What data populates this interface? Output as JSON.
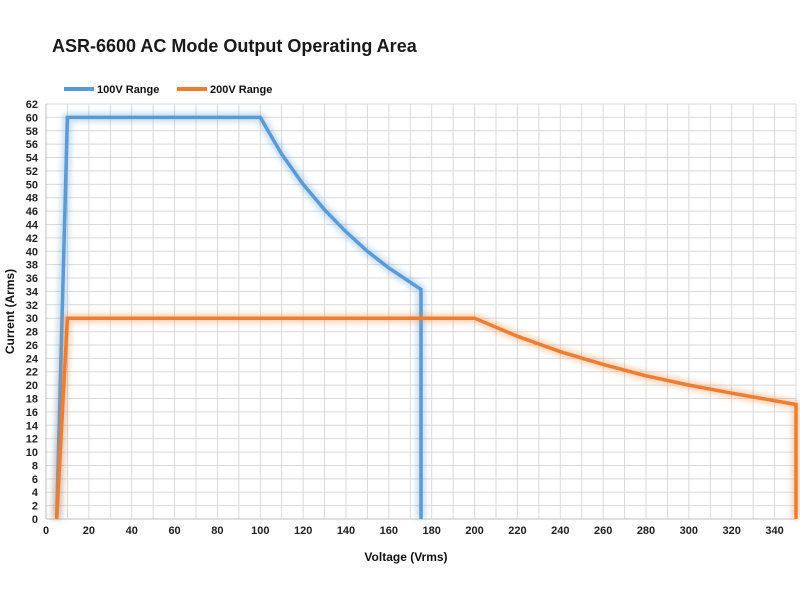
{
  "chart_data": {
    "type": "line",
    "title": "ASR-6600 AC Mode Output Operating Area",
    "xlabel": "Voltage (Vrms)",
    "ylabel": "Current (Arms)",
    "xlim": [
      0,
      350
    ],
    "ylim": [
      0,
      62
    ],
    "x_ticks": [
      0,
      20,
      40,
      60,
      80,
      100,
      120,
      140,
      160,
      180,
      200,
      220,
      240,
      260,
      280,
      300,
      320,
      340
    ],
    "y_ticks": [
      0,
      2,
      4,
      6,
      8,
      10,
      12,
      14,
      16,
      18,
      20,
      22,
      24,
      26,
      28,
      30,
      32,
      34,
      36,
      38,
      40,
      42,
      44,
      46,
      48,
      50,
      52,
      54,
      56,
      58,
      60,
      62
    ],
    "grid": true,
    "legend_position": "top-left",
    "series": [
      {
        "name": "100V Range",
        "color": "#5b9bd5",
        "points": [
          [
            5,
            0
          ],
          [
            10,
            60
          ],
          [
            100,
            60
          ],
          [
            110,
            54.5
          ],
          [
            120,
            50
          ],
          [
            130,
            46.2
          ],
          [
            140,
            42.9
          ],
          [
            150,
            40
          ],
          [
            160,
            37.5
          ],
          [
            175,
            34.3
          ],
          [
            175,
            0
          ]
        ]
      },
      {
        "name": "200V Range",
        "color": "#ed7d31",
        "points": [
          [
            5,
            0
          ],
          [
            10,
            30
          ],
          [
            200,
            30
          ],
          [
            220,
            27.3
          ],
          [
            240,
            25
          ],
          [
            260,
            23.1
          ],
          [
            280,
            21.4
          ],
          [
            300,
            20
          ],
          [
            320,
            18.8
          ],
          [
            350,
            17.1
          ],
          [
            350,
            0
          ]
        ]
      }
    ]
  }
}
